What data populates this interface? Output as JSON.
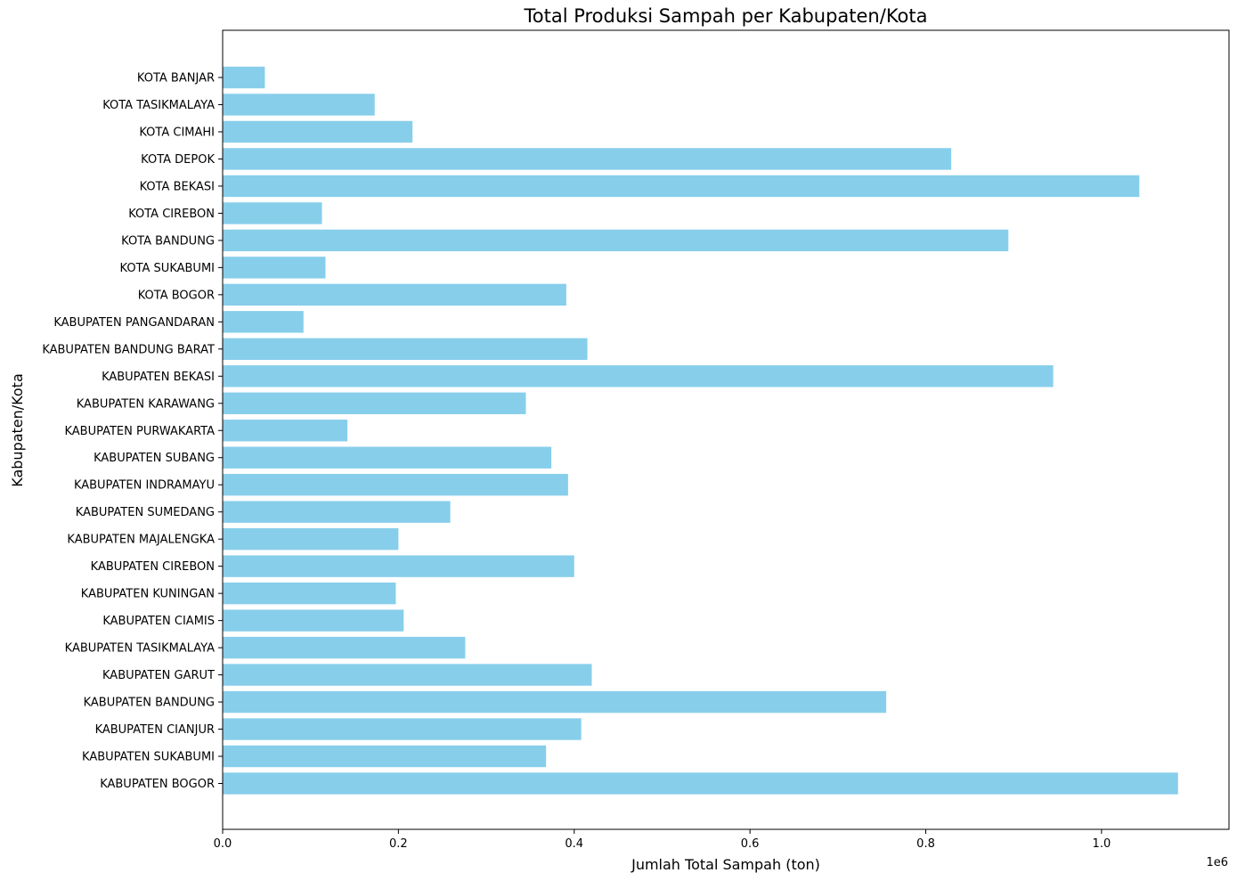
{
  "chart_data": {
    "type": "bar",
    "orientation": "horizontal",
    "title": "Total Produksi Sampah per Kabupaten/Kota",
    "xlabel": "Jumlah Total Sampah (ton)",
    "ylabel": "Kabupaten/Kota",
    "x_offset_label": "1e6",
    "xlim": [
      0,
      1.145
    ],
    "x_ticks": [
      0.0,
      0.2,
      0.4,
      0.6,
      0.8,
      1.0
    ],
    "x_tick_labels": [
      "0.0",
      "0.2",
      "0.4",
      "0.6",
      "0.8",
      "1.0"
    ],
    "bar_color": "#87CEEB",
    "grid": false,
    "categories": [
      "KABUPATEN BOGOR",
      "KABUPATEN SUKABUMI",
      "KABUPATEN CIANJUR",
      "KABUPATEN BANDUNG",
      "KABUPATEN GARUT",
      "KABUPATEN TASIKMALAYA",
      "KABUPATEN CIAMIS",
      "KABUPATEN KUNINGAN",
      "KABUPATEN CIREBON",
      "KABUPATEN MAJALENGKA",
      "KABUPATEN SUMEDANG",
      "KABUPATEN INDRAMAYU",
      "KABUPATEN SUBANG",
      "KABUPATEN PURWAKARTA",
      "KABUPATEN KARAWANG",
      "KABUPATEN BEKASI",
      "KABUPATEN BANDUNG BARAT",
      "KABUPATEN PANGANDARAN",
      "KOTA BOGOR",
      "KOTA SUKABUMI",
      "KOTA BANDUNG",
      "KOTA CIREBON",
      "KOTA BEKASI",
      "KOTA DEPOK",
      "KOTA CIMAHI",
      "KOTA TASIKMALAYA",
      "KOTA BANJAR"
    ],
    "values": [
      1.087,
      0.368,
      0.408,
      0.755,
      0.42,
      0.276,
      0.206,
      0.197,
      0.4,
      0.2,
      0.259,
      0.393,
      0.374,
      0.142,
      0.345,
      0.945,
      0.415,
      0.092,
      0.391,
      0.117,
      0.894,
      0.113,
      1.043,
      0.829,
      0.216,
      0.173,
      0.048
    ]
  }
}
